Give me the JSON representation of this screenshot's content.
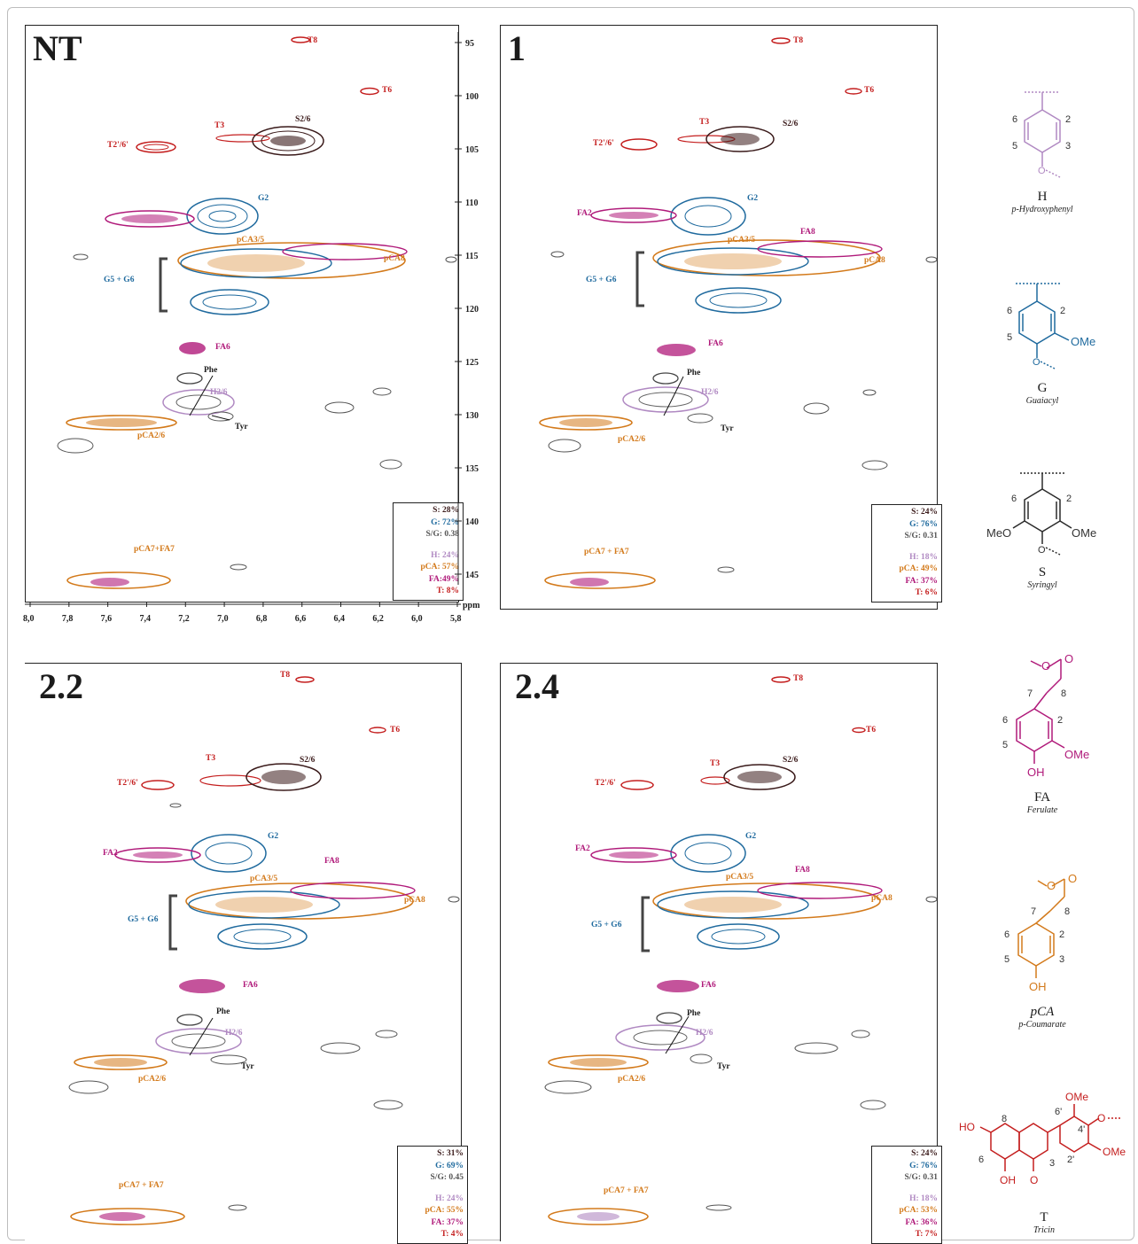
{
  "panels": [
    {
      "id": "p1",
      "title": "NT",
      "legend": {
        "s": "S: 28%",
        "g": "G: 72%",
        "sg": "S/G: 0.38",
        "h": "H: 24%",
        "pca": "pCA: 57%",
        "fa": "FA:49%",
        "t": "T: 8%"
      }
    },
    {
      "id": "p2",
      "title": "1",
      "legend": {
        "s": "S: 24%",
        "g": "G: 76%",
        "sg": "S/G: 0.31",
        "h": "H: 18%",
        "pca": "pCA: 49%",
        "fa": "FA: 37%",
        "t": "T: 6%"
      }
    },
    {
      "id": "p3",
      "title": "2.2",
      "legend": {
        "s": "S: 31%",
        "g": "G: 69%",
        "sg": "S/G: 0.45",
        "h": "H: 24%",
        "pca": "pCA: 55%",
        "fa": "FA: 37%",
        "t": "T: 4%"
      }
    },
    {
      "id": "p4",
      "title": "2.4",
      "legend": {
        "s": "S: 24%",
        "g": "G: 76%",
        "sg": "S/G: 0.31",
        "h": "H: 18%",
        "pca": "pCA: 53%",
        "fa": "FA: 36%",
        "t": "T: 7%"
      }
    }
  ],
  "axes": {
    "ppm_label": "ppm",
    "y_ticks": [
      "95",
      "100",
      "105",
      "110",
      "115",
      "120",
      "125",
      "130",
      "135",
      "140",
      "145"
    ],
    "x_ticks": [
      "8,0",
      "7,8",
      "7,6",
      "7,4",
      "7,2",
      "7,0",
      "6,8",
      "6,6",
      "6,4",
      "6,2",
      "6,0",
      "5,8"
    ]
  },
  "signal_labels": {
    "t8": "T8",
    "t6": "T6",
    "t3": "T3",
    "t2": "T2'/6'",
    "s26": "S2/6",
    "g2": "G2",
    "fa2": "FA2",
    "pca35": "pCA3/5",
    "fa8": "FA8",
    "pca8": "pCA8",
    "g56": "G5 + G6",
    "fa6": "FA6",
    "phe": "Phe",
    "h26": "H2/6",
    "tyr": "Tyr",
    "pca26": "pCA2/6",
    "pca7fa7": "pCA7+FA7",
    "pca7fa7b": "pCA7 + FA7",
    "pca7fa7c": "pCA7 + FA7"
  },
  "structures": [
    {
      "name": "H",
      "long": "p-Hydroxyphenyl",
      "color": "#b089c2",
      "substituents": [
        "6",
        "2",
        "5",
        "3"
      ]
    },
    {
      "name": "G",
      "long": "Guaiacyl",
      "color": "#1f6a9e",
      "substituents": [
        "6",
        "2",
        "5",
        "OMe"
      ]
    },
    {
      "name": "S",
      "long": "Syringyl",
      "color": "#2a2a2a",
      "substituents": [
        "6",
        "2",
        "MeO",
        "OMe"
      ]
    },
    {
      "name": "FA",
      "long": "Ferulate",
      "color": "#b01a7a",
      "substituents": [
        "7",
        "8",
        "6",
        "2",
        "5",
        "OMe",
        "OH"
      ]
    },
    {
      "name": "pCA",
      "long": "p-Coumarate",
      "color": "#d37a1b",
      "substituents": [
        "7",
        "8",
        "6",
        "2",
        "5",
        "3",
        "OH"
      ]
    },
    {
      "name": "T",
      "long": "Tricin",
      "color": "#c41e1e",
      "substituents": [
        "OMe",
        "HO",
        "8",
        "6'",
        "4'",
        "O",
        "OMe",
        "2'",
        "3",
        "6",
        "OH",
        "O"
      ]
    }
  ],
  "colors": {
    "S": "#3a1a1a",
    "G": "#1f6a9e",
    "H": "#b089c2",
    "pCA": "#d37a1b",
    "FA": "#b01a7a",
    "T": "#c41e1e",
    "other": "#444444"
  }
}
